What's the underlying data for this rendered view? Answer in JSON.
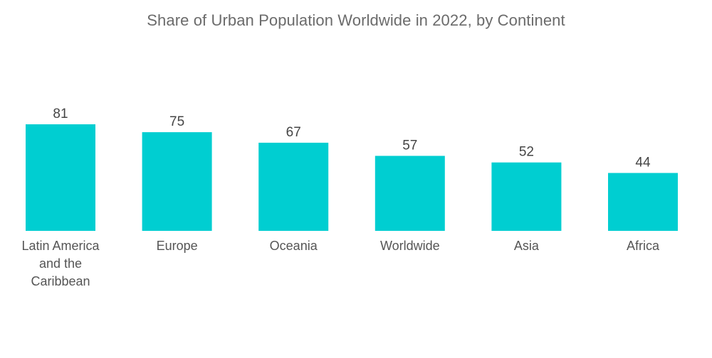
{
  "chart_data": {
    "type": "bar",
    "title": "Share of Urban Population Worldwide in 2022, by Continent",
    "xlabel": "",
    "ylabel": "",
    "categories": [
      [
        "Latin America",
        "and the",
        "Caribbean"
      ],
      [
        "Europe"
      ],
      [
        "Oceania"
      ],
      [
        "Worldwide"
      ],
      [
        "Asia"
      ],
      [
        "Africa"
      ]
    ],
    "values": [
      81,
      75,
      67,
      57,
      52,
      44
    ],
    "data_labels": [
      "81",
      "75",
      "67",
      "57",
      "52",
      "44"
    ],
    "ylim": [
      0,
      100
    ],
    "grid": false,
    "legend": "none",
    "bar_color": "#00CED1"
  }
}
